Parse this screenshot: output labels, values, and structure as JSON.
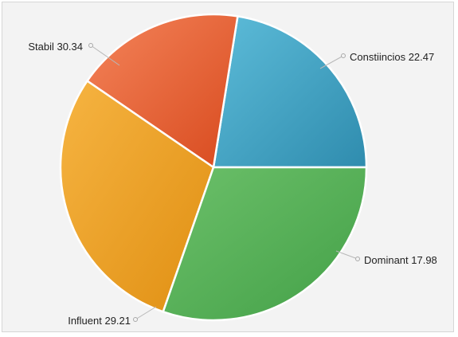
{
  "chart_data": {
    "type": "pie",
    "slices": [
      {
        "label": "Constiincios",
        "value": 22.47,
        "color": "#3a9dbf"
      },
      {
        "label": "Dominant",
        "value": 17.98,
        "color": "#e15a2a"
      },
      {
        "label": "Influent",
        "value": 29.21,
        "color": "#ec9f23"
      },
      {
        "label": "Stabil",
        "value": 30.34,
        "color": "#55ae57"
      }
    ],
    "legend": "none"
  }
}
